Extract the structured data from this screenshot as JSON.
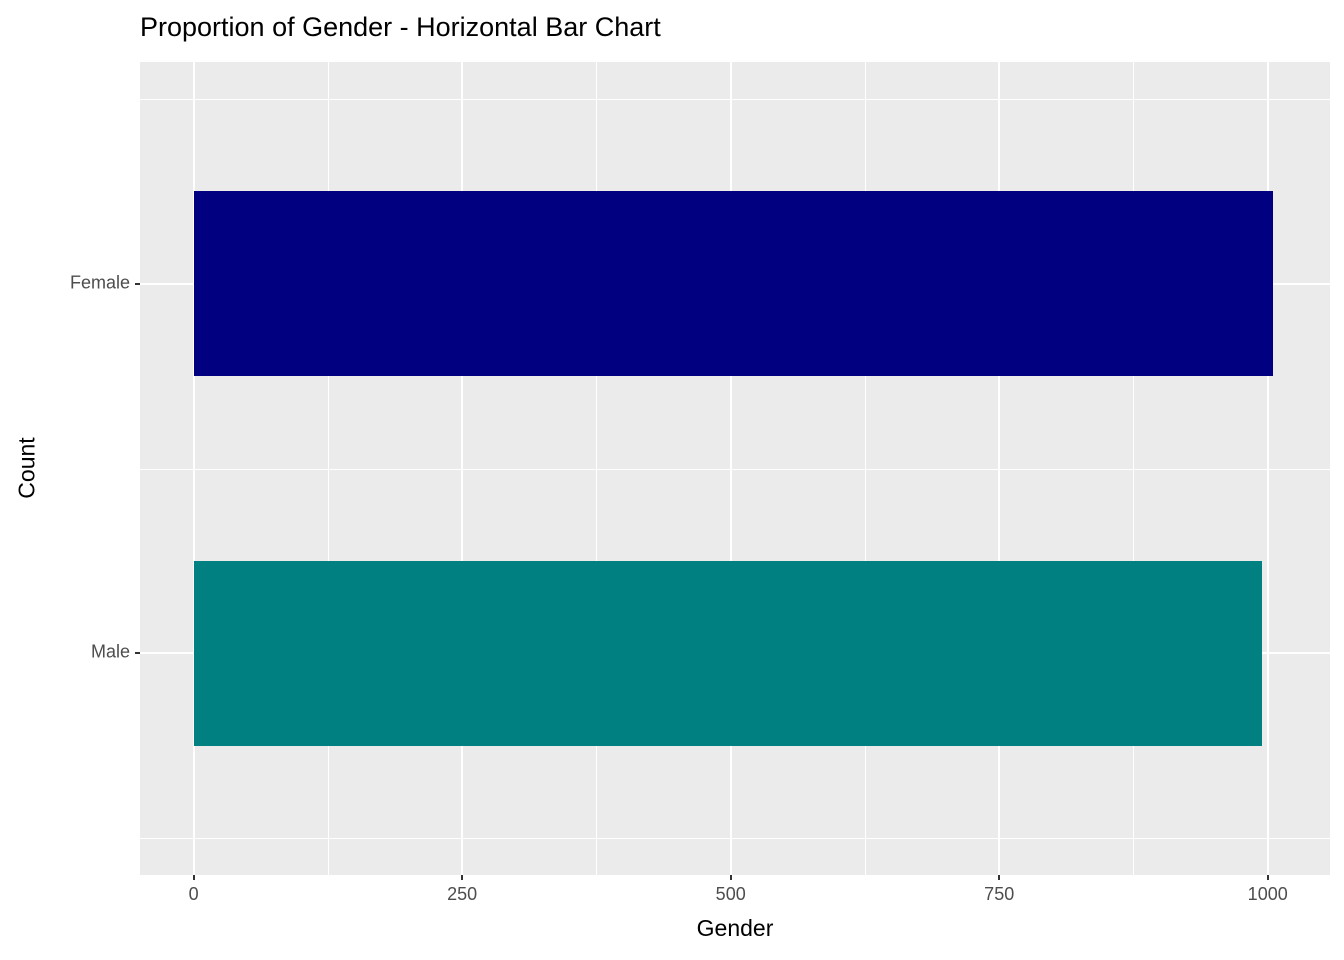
{
  "chart_data": {
    "type": "bar",
    "orientation": "horizontal",
    "title": "Proportion of Gender - Horizontal Bar Chart",
    "xlabel": "Gender",
    "ylabel": "Count",
    "categories": [
      "Female",
      "Male"
    ],
    "values": [
      1005,
      995
    ],
    "colors": [
      "#000080",
      "#008080"
    ],
    "bar_width": 0.5,
    "x_ticks": [
      0,
      250,
      500,
      750,
      1000
    ],
    "x_minor_ticks": [
      125,
      375,
      625,
      875
    ],
    "xlim": [
      -50,
      1058
    ],
    "panel_bg": "#EBEBEB",
    "grid_color": "#FFFFFF",
    "grid": "on",
    "legend_position": "none"
  }
}
